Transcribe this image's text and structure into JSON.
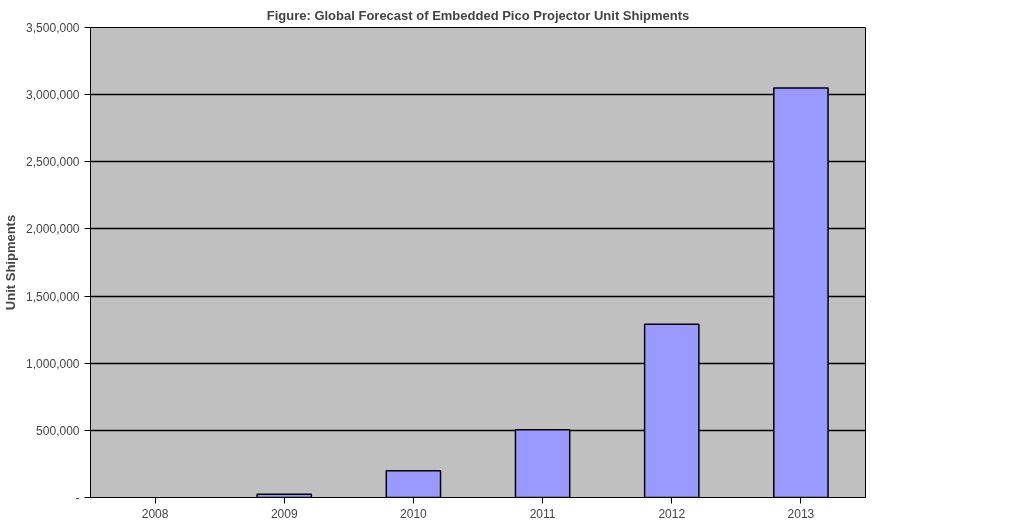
{
  "chart_data": {
    "type": "bar",
    "title": "Figure: Global Forecast of Embedded Pico Projector Unit Shipments",
    "ylabel": "Unit Shipments",
    "categories": [
      "2008",
      "2009",
      "2010",
      "2011",
      "2012",
      "2013"
    ],
    "values": [
      0,
      25000,
      200000,
      505000,
      1290000,
      3050000
    ],
    "color": "#9999ff",
    "ylim": [
      0,
      3500000
    ],
    "yticks": [
      {
        "value": 0,
        "label": "-"
      },
      {
        "value": 500000,
        "label": "500,000"
      },
      {
        "value": 1000000,
        "label": "1,000,000"
      },
      {
        "value": 1500000,
        "label": "1,500,000"
      },
      {
        "value": 2000000,
        "label": "2,000,000"
      },
      {
        "value": 2500000,
        "label": "2,500,000"
      },
      {
        "value": 3000000,
        "label": "3,000,000"
      },
      {
        "value": 3500000,
        "label": "3,500,000"
      }
    ],
    "grid": "y"
  }
}
